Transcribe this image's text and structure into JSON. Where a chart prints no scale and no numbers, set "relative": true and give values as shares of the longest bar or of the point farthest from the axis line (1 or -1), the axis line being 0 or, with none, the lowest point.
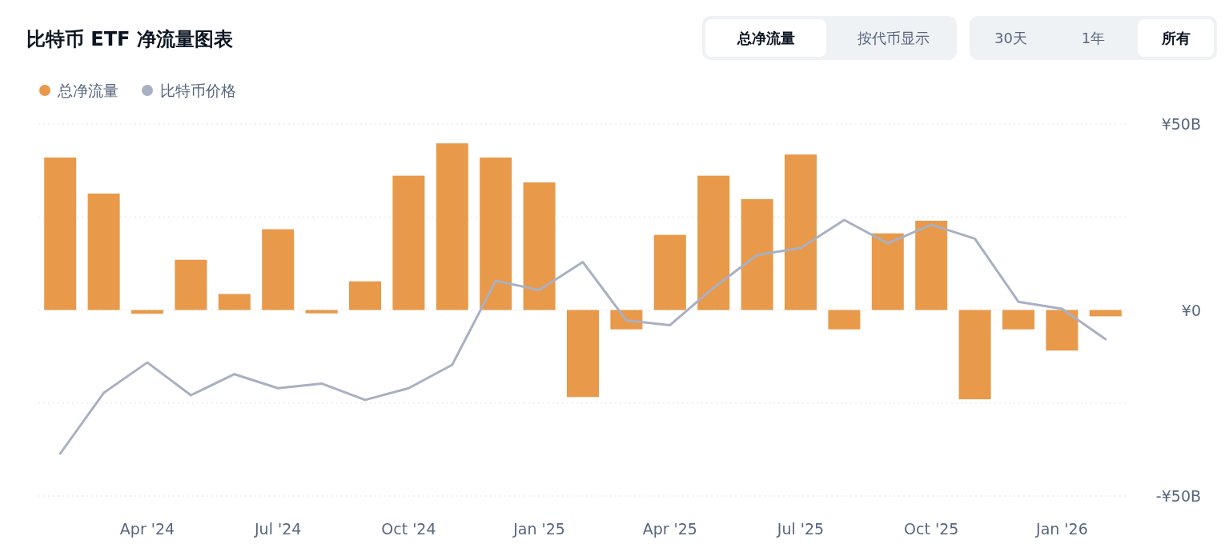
{
  "chart_data": [
    {
      "type": "bar",
      "title": "比特币 ETF 净流量图表",
      "annotations": [
        "总净流量",
        "按代币显示",
        "30天",
        "1年",
        "所有"
      ],
      "categories": [
        null,
        null,
        "Apr '24",
        null,
        null,
        "Jul '24",
        null,
        null,
        "Oct '24",
        null,
        null,
        "Jan '25",
        null,
        null,
        "Apr '25",
        null,
        null,
        "Jul '25",
        null,
        null,
        "Oct '25",
        null,
        null,
        "Jan '26",
        null
      ],
      "series": [
        {
          "name": "总净流量",
          "color": "#e8994a",
          "values": [
            41.0,
            31.3,
            -1.0,
            13.5,
            4.3,
            21.7,
            -0.9,
            7.7,
            36.1,
            44.8,
            41.0,
            34.3,
            -23.4,
            -5.2,
            20.2,
            36.1,
            29.8,
            41.8,
            -5.2,
            20.6,
            24.0,
            -24.0,
            -5.2,
            -10.9,
            -1.7
          ]
        }
      ],
      "ylim": [
        -50,
        50
      ],
      "yticks": [
        {
          "value": -50,
          "label": "-¥50B"
        },
        {
          "value": -25,
          "label": null
        },
        {
          "value": 0,
          "label": "¥0"
        },
        {
          "value": 25,
          "label": null
        },
        {
          "value": 50,
          "label": "¥50B"
        }
      ],
      "grid": "y",
      "legend": "top left"
    },
    {
      "type": "line",
      "relative": true,
      "categories": [
        null,
        null,
        null,
        null,
        null,
        null,
        null,
        null,
        null,
        null,
        null,
        null,
        null,
        null,
        null,
        null,
        null,
        null,
        null,
        null,
        null,
        null,
        null,
        null,
        null
      ],
      "series": [
        {
          "name": "比特币价格",
          "color": "#a9b0c3",
          "values": [
            0,
            0.26,
            0.39,
            0.25,
            0.34,
            0.28,
            0.3,
            0.23,
            0.28,
            0.38,
            0.74,
            0.7,
            0.82,
            0.57,
            0.55,
            0.71,
            0.85,
            0.88,
            1,
            0.9,
            0.98,
            0.92,
            0.65,
            0.62,
            0.49
          ]
        }
      ],
      "tick_labels": false,
      "legend": "top left"
    }
  ]
}
